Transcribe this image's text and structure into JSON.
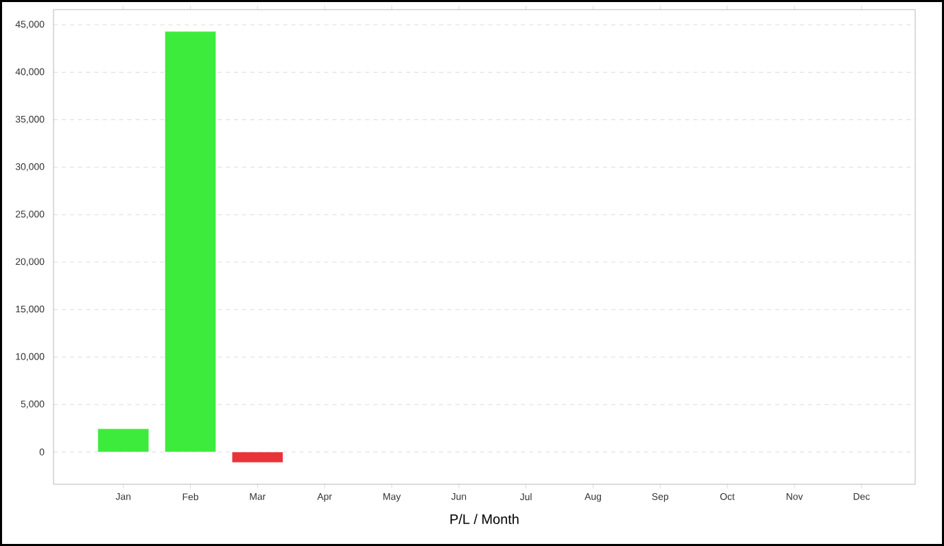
{
  "chart_data": {
    "type": "bar",
    "xlabel": "P/L / Month",
    "categories": [
      "Jan",
      "Feb",
      "Mar",
      "Apr",
      "May",
      "Jun",
      "Jul",
      "Aug",
      "Sep",
      "Oct",
      "Nov",
      "Dec"
    ],
    "values": [
      2450,
      44300,
      -1100,
      null,
      null,
      null,
      null,
      null,
      null,
      null,
      null,
      null
    ],
    "colors": [
      "#3deb3d",
      "#3deb3d",
      "#e8333a",
      null,
      null,
      null,
      null,
      null,
      null,
      null,
      null,
      null
    ],
    "ylim": [
      -3400,
      46600
    ],
    "yticks": [
      {
        "value": 0,
        "label": "0"
      },
      {
        "value": 5000,
        "label": "5,000"
      },
      {
        "value": 10000,
        "label": "10,000"
      },
      {
        "value": 15000,
        "label": "15,000"
      },
      {
        "value": 20000,
        "label": "20,000"
      },
      {
        "value": 25000,
        "label": "25,000"
      },
      {
        "value": 30000,
        "label": "30,000"
      },
      {
        "value": 35000,
        "label": "35,000"
      },
      {
        "value": 40000,
        "label": "40,000"
      },
      {
        "value": 45000,
        "label": "45,000"
      }
    ],
    "grid": "y"
  }
}
